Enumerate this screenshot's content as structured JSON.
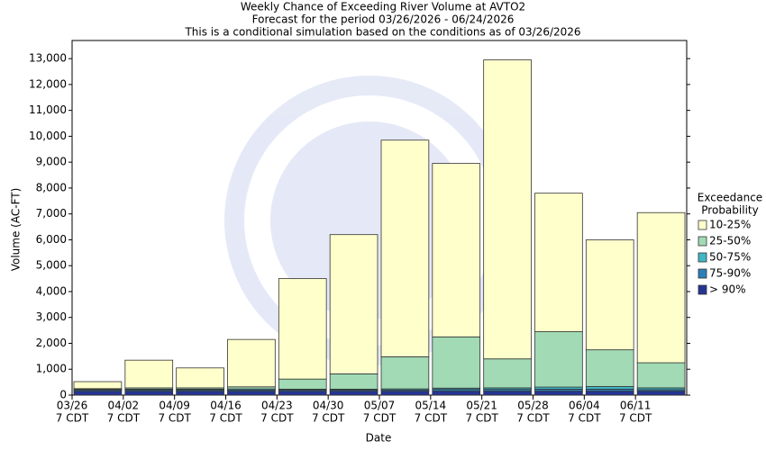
{
  "chart_data": {
    "type": "stacked_bar",
    "title": "Weekly Chance of Exceeding River Volume at AVTO2",
    "subtitles": [
      "Forecast for the period 03/26/2026 - 06/24/2026",
      "This is a conditional simulation based on the conditions as of 03/26/2026"
    ],
    "x_label": "Date",
    "y_label": "Volume (AC-FT)",
    "categories": [
      "03/26",
      "04/02",
      "04/09",
      "04/16",
      "04/23",
      "04/30",
      "05/07",
      "05/14",
      "05/21",
      "05/28",
      "06/04",
      "06/11"
    ],
    "category_sublabels": [
      "7 CDT",
      "7 CDT",
      "7 CDT",
      "7 CDT",
      "7 CDT",
      "7 CDT",
      "7 CDT",
      "7 CDT",
      "7 CDT",
      "7 CDT",
      "7 CDT",
      "7 CDT"
    ],
    "legend_title": [
      "Exceedance",
      "Probability"
    ],
    "series": [
      {
        "name": "> 90%",
        "color": "#253494",
        "values": [
          150,
          150,
          150,
          150,
          150,
          150,
          150,
          150,
          150,
          150,
          150,
          150
        ]
      },
      {
        "name": "75-90%",
        "color": "#2c7fb8",
        "values": [
          50,
          50,
          50,
          50,
          50,
          50,
          50,
          70,
          70,
          80,
          80,
          60
        ]
      },
      {
        "name": "50-75%",
        "color": "#41b6c4",
        "values": [
          20,
          30,
          30,
          40,
          30,
          30,
          40,
          50,
          60,
          80,
          100,
          70
        ]
      },
      {
        "name": "25-50%",
        "color": "#a1dab4",
        "values": [
          30,
          50,
          50,
          80,
          390,
          590,
          1240,
          1980,
          1120,
          2140,
          1420,
          970
        ]
      },
      {
        "name": "10-25%",
        "color": "#ffffcc",
        "values": [
          270,
          1070,
          770,
          1830,
          3880,
          5380,
          8370,
          6700,
          11550,
          5350,
          4250,
          5800
        ]
      }
    ],
    "ylim": [
      0,
      13700
    ],
    "yticks": [
      0,
      {
        "value": 1000,
        "label": "1,000"
      },
      {
        "value": 2000,
        "label": "2,000"
      },
      {
        "value": 3000,
        "label": "3,000"
      },
      {
        "value": 4000,
        "label": "4,000"
      },
      {
        "value": 5000,
        "label": "5,000"
      },
      {
        "value": 6000,
        "label": "6,000"
      },
      {
        "value": 7000,
        "label": "7,000"
      },
      {
        "value": 8000,
        "label": "8,000"
      },
      {
        "value": 9000,
        "label": "9,000"
      },
      {
        "value": 10000,
        "label": "10,000"
      },
      {
        "value": 11000,
        "label": "11,000"
      },
      {
        "value": 12000,
        "label": "12,000"
      },
      {
        "value": 13000,
        "label": "13,000"
      }
    ]
  }
}
